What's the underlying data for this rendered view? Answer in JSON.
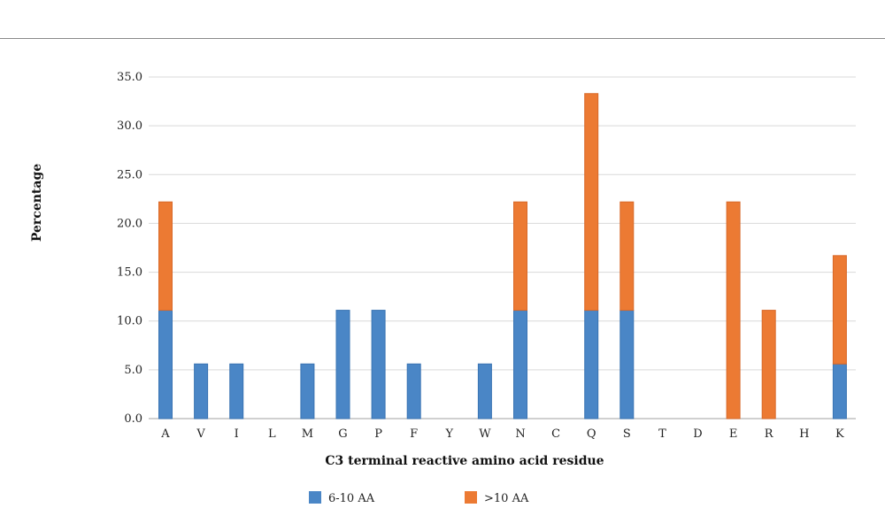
{
  "chart_data": {
    "type": "bar",
    "stacked": true,
    "categories": [
      "A",
      "V",
      "I",
      "L",
      "M",
      "G",
      "P",
      "F",
      "Y",
      "W",
      "N",
      "C",
      "Q",
      "S",
      "T",
      "D",
      "E",
      "R",
      "H",
      "K"
    ],
    "series": [
      {
        "name": "6-10 AA",
        "color": "#4a86c6",
        "values": [
          11.1,
          5.6,
          5.6,
          0,
          5.6,
          11.1,
          11.1,
          5.6,
          0,
          5.6,
          11.1,
          0,
          11.1,
          11.1,
          0,
          0,
          0,
          0,
          0,
          5.6
        ]
      },
      {
        "name": ">10 AA",
        "color": "#ec7a33",
        "values": [
          11.1,
          0,
          0,
          0,
          0,
          0,
          0,
          0,
          0,
          0,
          11.1,
          0,
          22.2,
          11.1,
          0,
          0,
          22.2,
          11.1,
          0,
          11.1
        ]
      }
    ],
    "title": "",
    "xlabel": "C3 terminal reactive amino acid residue",
    "ylabel": "Percentage",
    "ylim": [
      0,
      35
    ],
    "yticks": [
      "0.0",
      "5.0",
      "10.0",
      "15.0",
      "20.0",
      "25.0",
      "30.0",
      "35.0"
    ],
    "grid": true,
    "legend_position": "bottom"
  }
}
